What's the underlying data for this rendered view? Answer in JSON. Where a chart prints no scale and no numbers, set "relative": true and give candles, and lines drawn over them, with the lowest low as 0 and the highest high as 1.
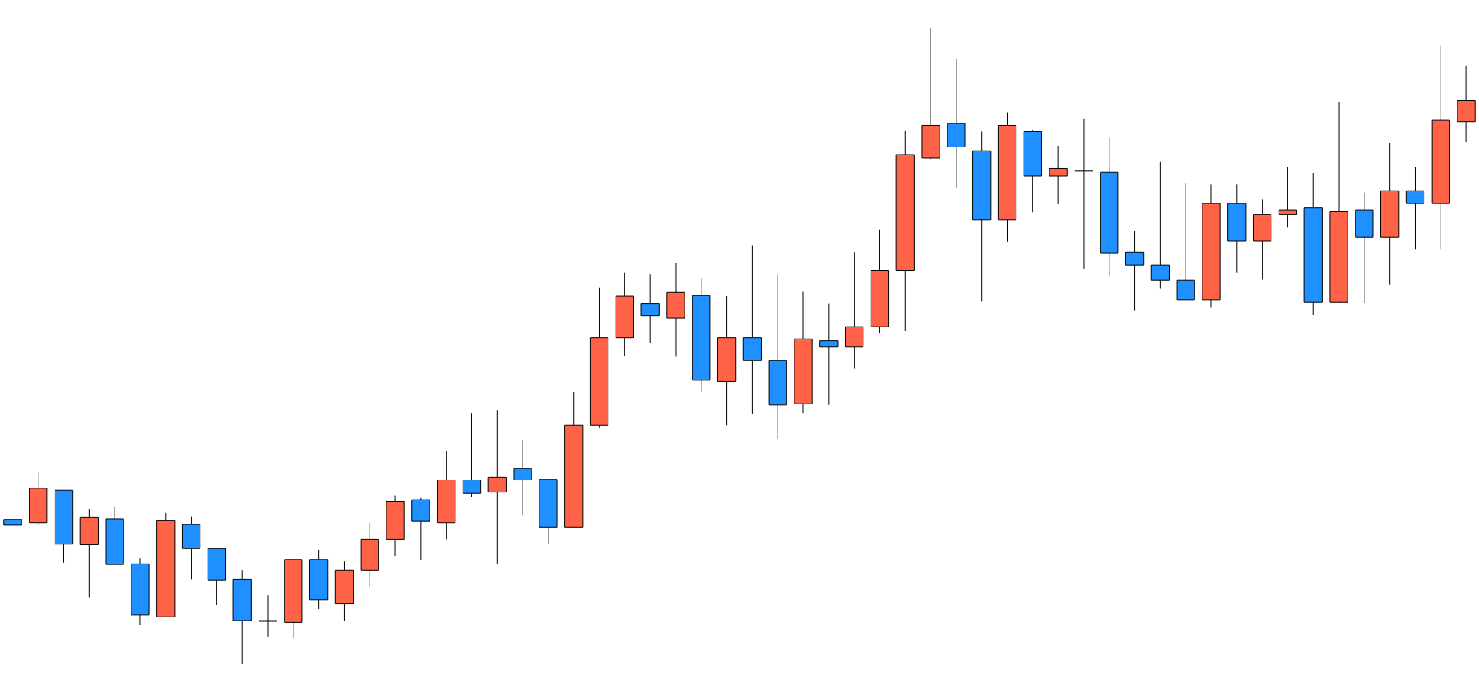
{
  "chart_data": {
    "type": "candlestick",
    "relative": true,
    "grid": false,
    "categories": [
      null,
      null,
      null,
      null,
      null,
      null,
      null,
      null,
      null,
      null,
      null,
      null,
      null,
      null,
      null,
      null,
      null,
      null,
      null,
      null,
      null,
      null,
      null,
      null,
      null,
      null,
      null,
      null,
      null,
      null,
      null,
      null,
      null,
      null,
      null,
      null,
      null,
      null,
      null,
      null,
      null,
      null,
      null,
      null,
      null,
      null,
      null,
      null,
      null,
      null,
      null,
      null,
      null,
      null,
      null,
      null,
      null,
      null
    ],
    "ohlc": [
      [
        0.227,
        0.227,
        0.218,
        0.218
      ],
      [
        0.222,
        0.302,
        0.218,
        0.276
      ],
      [
        0.273,
        0.273,
        0.159,
        0.188
      ],
      [
        0.187,
        0.243,
        0.104,
        0.23
      ],
      [
        0.228,
        0.247,
        0.156,
        0.156
      ],
      [
        0.157,
        0.166,
        0.061,
        0.077
      ],
      [
        0.074,
        0.237,
        0.074,
        0.225
      ],
      [
        0.219,
        0.231,
        0.133,
        0.181
      ],
      [
        0.181,
        0.181,
        0.092,
        0.132
      ],
      [
        0.133,
        0.147,
        0,
        0.068
      ],
      [
        0.068,
        0.108,
        0.043,
        0.068
      ],
      [
        0.065,
        0.164,
        0.04,
        0.164
      ],
      [
        0.164,
        0.179,
        0.086,
        0.101
      ],
      [
        0.095,
        0.161,
        0.068,
        0.147
      ],
      [
        0.147,
        0.222,
        0.121,
        0.196
      ],
      [
        0.196,
        0.265,
        0.17,
        0.255
      ],
      [
        0.258,
        0.261,
        0.163,
        0.224
      ],
      [
        0.222,
        0.335,
        0.196,
        0.289
      ],
      [
        0.289,
        0.394,
        0.262,
        0.268
      ],
      [
        0.27,
        0.399,
        0.156,
        0.293
      ],
      [
        0.307,
        0.351,
        0.234,
        0.289
      ],
      [
        0.29,
        0.29,
        0.188,
        0.215
      ],
      [
        0.215,
        0.427,
        0.215,
        0.375
      ],
      [
        0.375,
        0.591,
        0.372,
        0.513
      ],
      [
        0.513,
        0.615,
        0.484,
        0.578
      ],
      [
        0.566,
        0.613,
        0.505,
        0.547
      ],
      [
        0.544,
        0.63,
        0.483,
        0.584
      ],
      [
        0.579,
        0.607,
        0.428,
        0.446
      ],
      [
        0.444,
        0.578,
        0.375,
        0.513
      ],
      [
        0.513,
        0.658,
        0.393,
        0.477
      ],
      [
        0.477,
        0.613,
        0.354,
        0.407
      ],
      [
        0.409,
        0.585,
        0.394,
        0.511
      ],
      [
        0.508,
        0.566,
        0.407,
        0.499
      ],
      [
        0.499,
        0.647,
        0.464,
        0.53
      ],
      [
        0.53,
        0.683,
        0.52,
        0.619
      ],
      [
        0.619,
        0.839,
        0.523,
        0.801
      ],
      [
        0.796,
        1,
        0.793,
        0.847
      ],
      [
        0.85,
        0.951,
        0.748,
        0.813
      ],
      [
        0.807,
        0.837,
        0.57,
        0.698
      ],
      [
        0.698,
        0.867,
        0.664,
        0.847
      ],
      [
        0.837,
        0.84,
        0.71,
        0.767
      ],
      [
        0.767,
        0.815,
        0.723,
        0.779
      ],
      [
        0.776,
        0.858,
        0.621,
        0.776
      ],
      [
        0.773,
        0.828,
        0.609,
        0.646
      ],
      [
        0.647,
        0.681,
        0.556,
        0.627
      ],
      [
        0.627,
        0.79,
        0.59,
        0.603
      ],
      [
        0.603,
        0.756,
        0.572,
        0.572
      ],
      [
        0.572,
        0.754,
        0.56,
        0.724
      ],
      [
        0.724,
        0.754,
        0.615,
        0.665
      ],
      [
        0.665,
        0.73,
        0.604,
        0.707
      ],
      [
        0.707,
        0.782,
        0.686,
        0.714
      ],
      [
        0.717,
        0.772,
        0.548,
        0.569
      ],
      [
        0.569,
        0.883,
        0.567,
        0.711
      ],
      [
        0.714,
        0.741,
        0.567,
        0.671
      ],
      [
        0.671,
        0.819,
        0.596,
        0.744
      ],
      [
        0.744,
        0.782,
        0.652,
        0.724
      ],
      [
        0.724,
        0.973,
        0.652,
        0.855
      ],
      [
        0.853,
        0.941,
        0.821,
        0.886
      ]
    ],
    "colors": [
      "#1e90ff",
      "#ff6347",
      "#1e90ff",
      "#ff6347",
      "#1e90ff",
      "#1e90ff",
      "#ff6347",
      "#1e90ff",
      "#1e90ff",
      "#1e90ff",
      "#000000",
      "#ff6347",
      "#1e90ff",
      "#ff6347",
      "#ff6347",
      "#ff6347",
      "#1e90ff",
      "#ff6347",
      "#1e90ff",
      "#ff6347",
      "#1e90ff",
      "#1e90ff",
      "#ff6347",
      "#ff6347",
      "#ff6347",
      "#1e90ff",
      "#ff6347",
      "#1e90ff",
      "#ff6347",
      "#1e90ff",
      "#1e90ff",
      "#ff6347",
      "#1e90ff",
      "#ff6347",
      "#ff6347",
      "#ff6347",
      "#ff6347",
      "#1e90ff",
      "#1e90ff",
      "#ff6347",
      "#1e90ff",
      "#ff6347",
      "#000000",
      "#1e90ff",
      "#1e90ff",
      "#1e90ff",
      "#1e90ff",
      "#ff6347",
      "#1e90ff",
      "#ff6347",
      "#ff6347",
      "#1e90ff",
      "#ff6347",
      "#1e90ff",
      "#ff6347",
      "#1e90ff",
      "#ff6347",
      "#ff6347"
    ]
  }
}
